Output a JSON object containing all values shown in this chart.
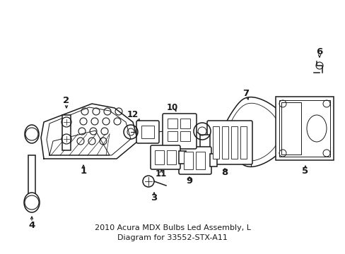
{
  "title": "2010 Acura MDX Bulbs Led Assembly, L\nDiagram for 33552-STX-A11",
  "background_color": "#ffffff",
  "line_color": "#1a1a1a",
  "text_color": "#1a1a1a",
  "label_fontsize": 9.5,
  "title_fontsize": 8,
  "figsize": [
    4.89,
    3.6
  ],
  "dpi": 100
}
